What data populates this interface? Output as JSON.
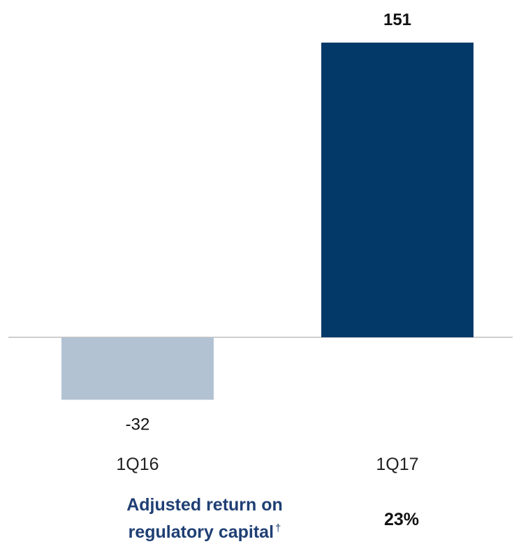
{
  "chart_data": {
    "type": "bar",
    "categories": [
      "1Q16",
      "1Q17"
    ],
    "values": [
      -32,
      151
    ],
    "data_labels": [
      "-32",
      "151"
    ],
    "title": "",
    "xlabel": "",
    "ylabel": "",
    "ylim": [
      -32,
      151
    ],
    "grid": false,
    "legend": "none"
  },
  "colors": {
    "negative_bar": "#b2c2d2",
    "positive_bar": "#023968",
    "baseline": "#bdbdbd",
    "footer_label": "#1f3f74"
  },
  "footer": {
    "label_line1": "Adjusted return on",
    "label_line2": "regulatory capital",
    "label_marker": "†",
    "value": "23%"
  }
}
